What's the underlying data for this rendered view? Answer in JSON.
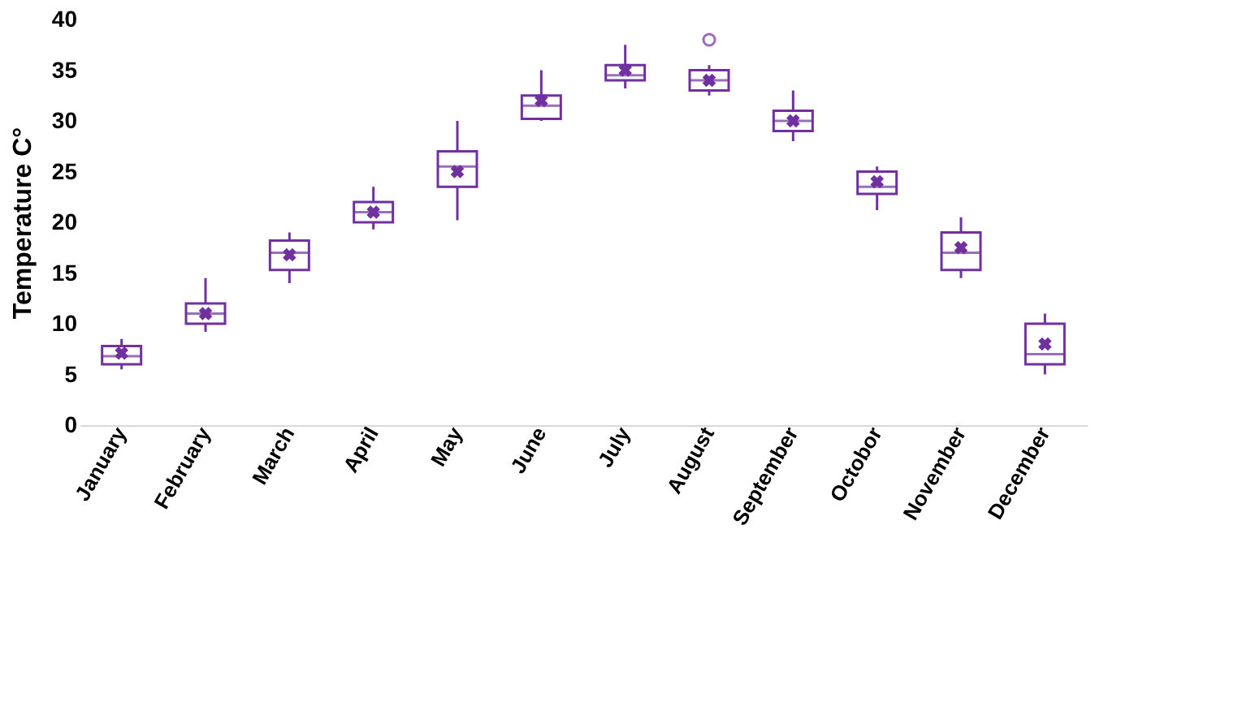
{
  "chart_data": {
    "type": "box",
    "ylabel": "Temperature C°",
    "categories": [
      "January",
      "February",
      "March",
      "April",
      "May",
      "June",
      "July",
      "August",
      "September",
      "Octobor",
      "November",
      "December"
    ],
    "color": "#7030a0",
    "ylim": [
      0,
      40
    ],
    "yticks": [
      0,
      5,
      10,
      15,
      20,
      25,
      30,
      35,
      40
    ],
    "grid": false,
    "boxes": [
      {
        "low": 5.5,
        "q1": 6,
        "median": 6.8,
        "q3": 7.8,
        "high": 8.5,
        "mean": 7.1
      },
      {
        "low": 9.2,
        "q1": 10,
        "median": 11,
        "q3": 12,
        "high": 14.5,
        "mean": 11
      },
      {
        "low": 14,
        "q1": 15.3,
        "median": 17,
        "q3": 18.2,
        "high": 19,
        "mean": 16.8
      },
      {
        "low": 19.3,
        "q1": 20,
        "median": 21,
        "q3": 22,
        "high": 23.5,
        "mean": 21
      },
      {
        "low": 20.2,
        "q1": 23.5,
        "median": 25.5,
        "q3": 27,
        "high": 30,
        "mean": 25
      },
      {
        "low": 30,
        "q1": 30.2,
        "median": 31.5,
        "q3": 32.5,
        "high": 35,
        "mean": 32
      },
      {
        "low": 33.2,
        "q1": 34,
        "median": 34.5,
        "q3": 35.5,
        "high": 37.5,
        "mean": 35
      },
      {
        "low": 32.5,
        "q1": 33,
        "median": 34,
        "q3": 35,
        "high": 35.5,
        "mean": 34,
        "outliers": [
          38
        ]
      },
      {
        "low": 28,
        "q1": 29,
        "median": 30,
        "q3": 31,
        "high": 33,
        "mean": 30
      },
      {
        "low": 21.2,
        "q1": 22.8,
        "median": 23.5,
        "q3": 25,
        "high": 25.5,
        "mean": 24
      },
      {
        "low": 14.5,
        "q1": 15.3,
        "median": 17,
        "q3": 19,
        "high": 20.5,
        "mean": 17.5
      },
      {
        "low": 5,
        "q1": 6,
        "median": 7,
        "q3": 10,
        "high": 11,
        "mean": 8
      }
    ]
  }
}
